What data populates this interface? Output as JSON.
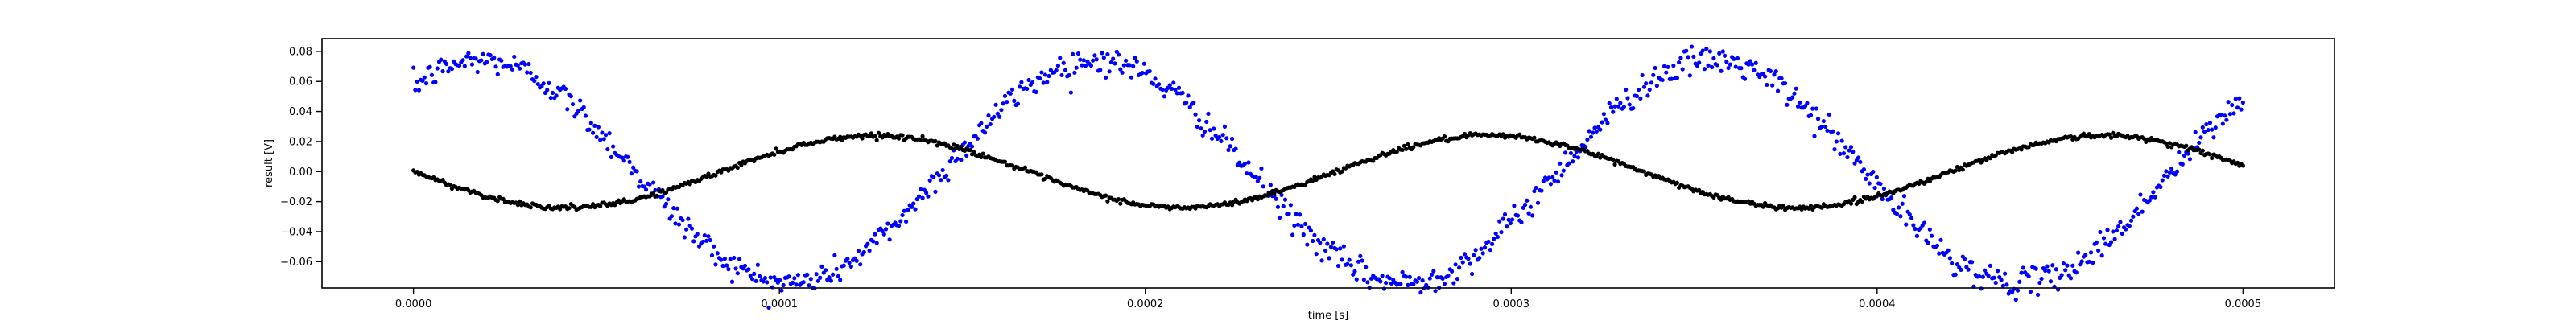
{
  "chart_data": {
    "type": "scatter",
    "xlabel": "time [s]",
    "ylabel": "result [V]",
    "xlim": [
      -2.5e-05,
      0.000525
    ],
    "ylim": [
      -0.0775,
      0.0885
    ],
    "x_ticks": [
      0.0,
      0.0001,
      0.0002,
      0.0003,
      0.0004,
      0.0005
    ],
    "x_tick_labels": [
      "0.0000",
      "0.0001",
      "0.0002",
      "0.0003",
      "0.0004",
      "0.0005"
    ],
    "y_ticks": [
      -0.06,
      -0.04,
      -0.02,
      0.0,
      0.02,
      0.04,
      0.06,
      0.08
    ],
    "y_tick_labels": [
      "−0.06",
      "−0.04",
      "−0.02",
      "0.00",
      "0.02",
      "0.04",
      "0.06",
      "0.08"
    ],
    "grid": false,
    "legend": "none",
    "x_range": [
      0.0,
      0.0005
    ],
    "series": [
      {
        "color": "#0000ff",
        "description": "sinusoid, approx amplitude 0.074 V, period 0.000168 s, starting near 0.057 V at t=0 and rising to a peak near t=0.00002 s",
        "amplitude": 0.074,
        "period": 0.000168,
        "phase": 0.872,
        "noise": 0.0045,
        "points": 1000
      },
      {
        "color": "#000000",
        "description": "sinusoid, approx amplitude 0.024 V, period 0.000168 s, starting near 0.00 V at t=0 and falling to a minimum near t=0.00004 s",
        "amplitude": 0.024,
        "period": 0.000168,
        "phase": 3.1416,
        "noise": 0.0008,
        "points": 1000
      }
    ]
  }
}
